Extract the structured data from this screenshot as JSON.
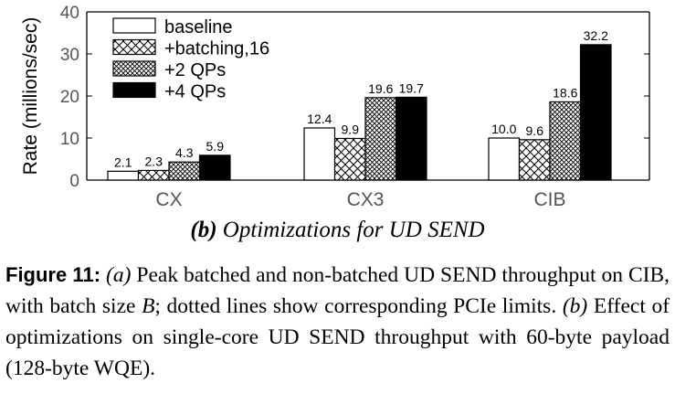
{
  "chart_data": {
    "type": "bar",
    "ylabel": "Rate (millions/sec)",
    "ylim": [
      0,
      40
    ],
    "yticks": [
      0,
      10,
      20,
      30,
      40
    ],
    "categories": [
      "CX",
      "CX3",
      "CIB"
    ],
    "legend_position": "top-left",
    "series": [
      {
        "name": "baseline",
        "pattern": "white",
        "values": [
          2.1,
          12.4,
          10.0
        ],
        "labels": [
          "2.1",
          "12.4",
          "10.0"
        ]
      },
      {
        "name": "+batching,16",
        "pattern": "crosshatch",
        "values": [
          2.3,
          9.9,
          9.6
        ],
        "labels": [
          "2.3",
          "9.9",
          "9.6"
        ]
      },
      {
        "name": "+2 QPs",
        "pattern": "dense-crosshatch",
        "values": [
          4.3,
          19.6,
          18.6
        ],
        "labels": [
          "4.3",
          "19.6",
          "18.6"
        ]
      },
      {
        "name": "+4 QPs",
        "pattern": "black",
        "values": [
          5.9,
          19.7,
          32.2
        ],
        "labels": [
          "5.9",
          "19.7",
          "32.2"
        ]
      }
    ]
  },
  "subcaption": {
    "label": "(b)",
    "text": "Optimizations for UD SEND"
  },
  "caption": {
    "figure_label": "Figure 11:",
    "part_a_label": "(a)",
    "part_a_text1": "Peak batched and non-batched UD SEND throughput on CIB, with batch size",
    "part_a_var": "B",
    "part_a_text2": "; dotted lines show corresponding PCIe limits.",
    "part_b_label": "(b)",
    "part_b_text": "Effect of optimizations on single-core UD SEND throughput with 60-byte payload (128-byte WQE)."
  }
}
